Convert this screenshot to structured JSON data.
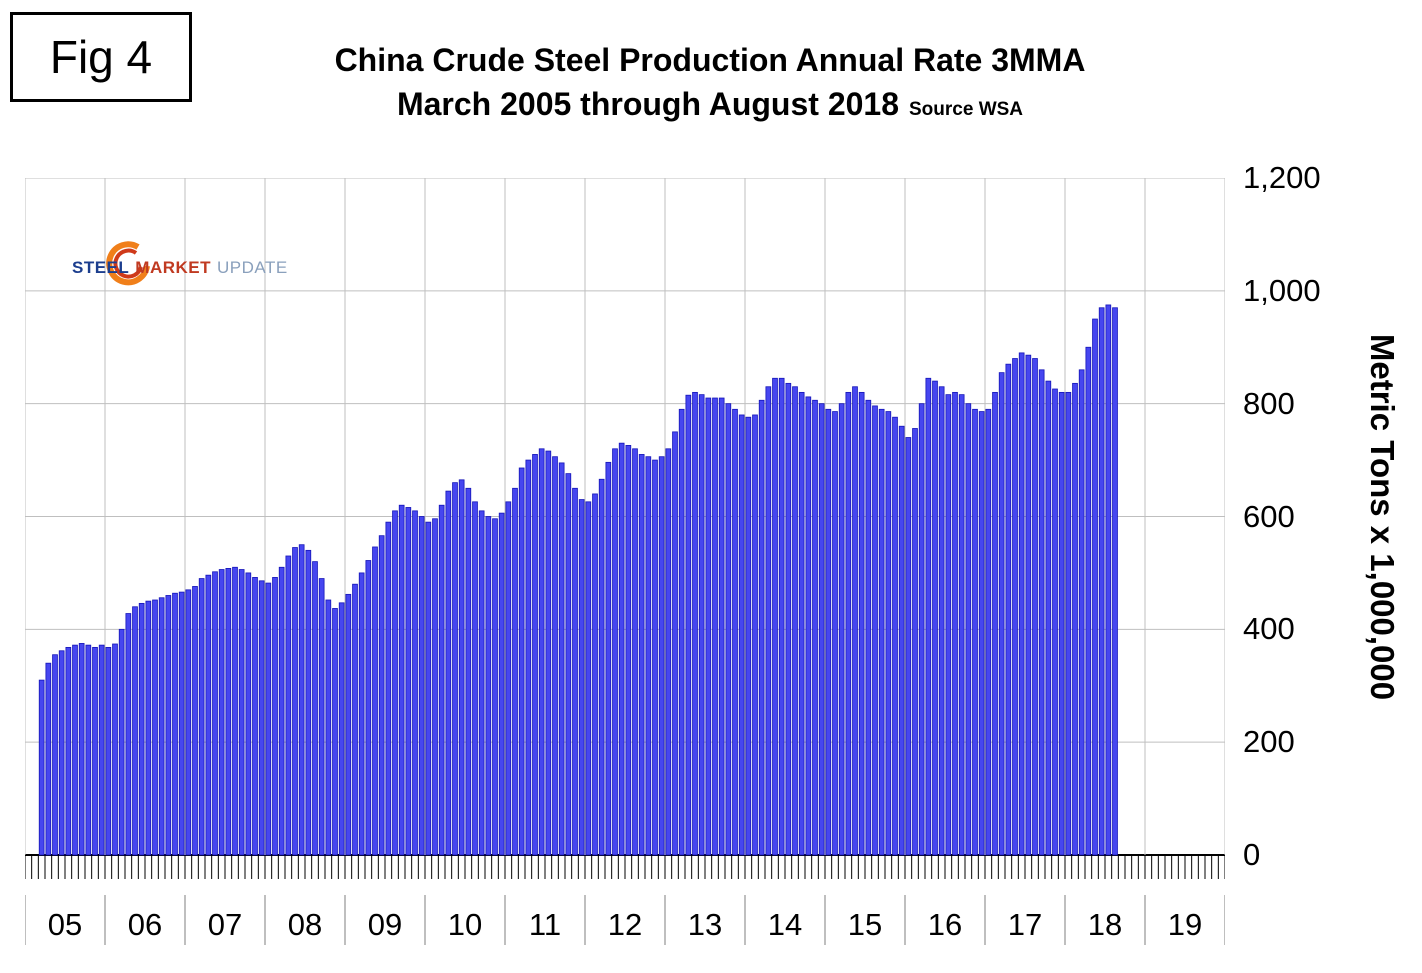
{
  "fig_label": "Fig 4",
  "header": {
    "line1": "China Crude Steel Production Annual Rate 3MMA",
    "line2": "March 2005 through August 2018",
    "source": "Source WSA"
  },
  "logo": {
    "word1": "STEEL",
    "word2": "MARKET",
    "word3": "UPDATE",
    "swoosh_outer_color": "#f07f1a",
    "swoosh_inner_color": "#cf3a1a"
  },
  "y_axis_title": "Metric Tons x 1,000,000",
  "chart_data": {
    "type": "bar",
    "title": "China Crude Steel Production Annual Rate 3MMA",
    "subtitle": "March 2005 through August 2018",
    "source": "Source WSA",
    "ylabel": "Metric Tons x 1,000,000",
    "ylim": [
      0,
      1200
    ],
    "y_ticks": [
      0,
      200,
      400,
      600,
      800,
      1000,
      1200
    ],
    "y_tick_labels": [
      "0",
      "200",
      "400",
      "600",
      "800",
      "1,000",
      "1,200"
    ],
    "x_year_labels": [
      "05",
      "06",
      "07",
      "08",
      "09",
      "10",
      "11",
      "12",
      "13",
      "14",
      "15",
      "16",
      "17",
      "18",
      "19"
    ],
    "start_year": 2005,
    "start_month": "2005-03",
    "end_month": "2018-08",
    "grid": true,
    "legend": "none",
    "bar_color": "#4646f0",
    "bar_border": "#1414b8",
    "monthly": [
      {
        "year": 2005,
        "first_month": 3,
        "values": [
          310,
          340,
          355,
          362,
          368,
          372,
          375,
          372,
          368,
          372
        ]
      },
      {
        "year": 2006,
        "first_month": 1,
        "values": [
          368,
          374,
          400,
          428,
          440,
          446,
          450,
          452,
          456,
          460,
          464,
          466
        ]
      },
      {
        "year": 2007,
        "first_month": 1,
        "values": [
          470,
          476,
          490,
          496,
          502,
          506,
          508,
          510,
          506,
          500,
          492,
          486
        ]
      },
      {
        "year": 2008,
        "first_month": 1,
        "values": [
          482,
          492,
          510,
          530,
          545,
          550,
          540,
          520,
          490,
          452,
          437,
          447
        ]
      },
      {
        "year": 2009,
        "first_month": 1,
        "values": [
          462,
          480,
          500,
          522,
          546,
          566,
          590,
          610,
          620,
          616,
          610,
          600
        ]
      },
      {
        "year": 2010,
        "first_month": 1,
        "values": [
          590,
          596,
          620,
          645,
          660,
          665,
          650,
          626,
          610,
          600,
          596,
          606
        ]
      },
      {
        "year": 2011,
        "first_month": 1,
        "values": [
          626,
          650,
          686,
          700,
          710,
          720,
          716,
          706,
          695,
          676,
          650,
          630
        ]
      },
      {
        "year": 2012,
        "first_month": 1,
        "values": [
          626,
          640,
          666,
          696,
          720,
          730,
          726,
          720,
          710,
          706,
          700,
          706
        ]
      },
      {
        "year": 2013,
        "first_month": 1,
        "values": [
          720,
          750,
          790,
          815,
          820,
          816,
          810,
          810,
          810,
          800,
          790,
          780
        ]
      },
      {
        "year": 2014,
        "first_month": 1,
        "values": [
          776,
          780,
          806,
          830,
          845,
          845,
          836,
          830,
          820,
          812,
          806,
          800
        ]
      },
      {
        "year": 2015,
        "first_month": 1,
        "values": [
          790,
          786,
          800,
          820,
          830,
          820,
          806,
          796,
          790,
          786,
          776,
          760
        ]
      },
      {
        "year": 2016,
        "first_month": 1,
        "values": [
          740,
          756,
          800,
          845,
          840,
          830,
          816,
          820,
          816,
          800,
          790,
          786
        ]
      },
      {
        "year": 2017,
        "first_month": 1,
        "values": [
          790,
          820,
          855,
          870,
          880,
          890,
          886,
          880,
          860,
          840,
          826,
          820
        ]
      },
      {
        "year": 2018,
        "first_month": 1,
        "values": [
          820,
          836,
          860,
          900,
          950,
          970,
          975,
          970
        ]
      }
    ]
  }
}
